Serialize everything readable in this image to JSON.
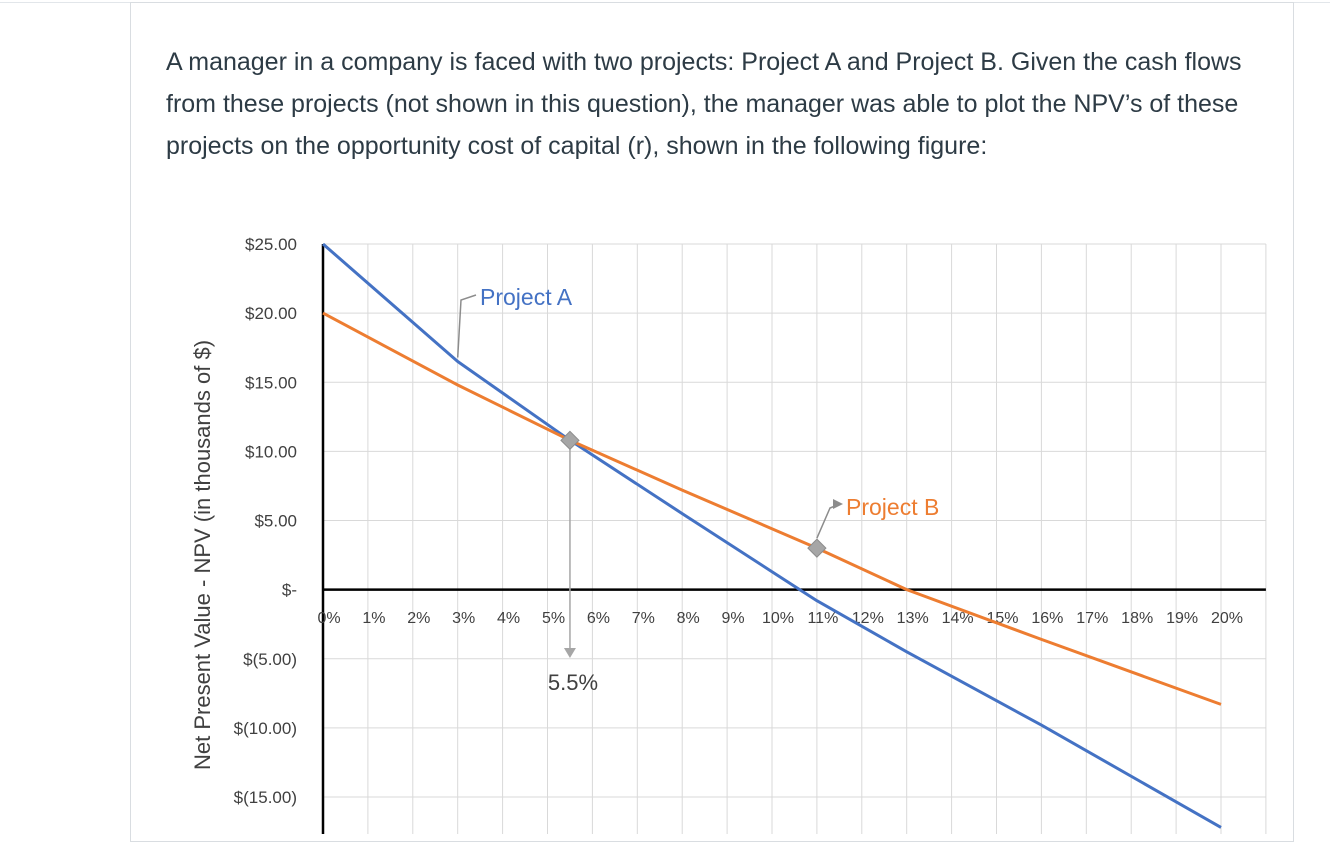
{
  "question": {
    "text": "A manager in a company is faced with two projects: Project A and Project B. Given the cash flows from these projects (not shown in this question), the manager was able to plot the NPV’s of these projects on the opportunity cost of capital (r), shown in the following figure:"
  },
  "chart_data": {
    "type": "line",
    "title": "",
    "xlabel": "",
    "ylabel": "Net Present Value - NPV (in thousands of $)",
    "x_ticks": [
      "0%",
      "1%",
      "2%",
      "3%",
      "4%",
      "5%",
      "6%",
      "7%",
      "8%",
      "9%",
      "10%",
      "11%",
      "12%",
      "13%",
      "14%",
      "15%",
      "16%",
      "17%",
      "18%",
      "19%",
      "20%"
    ],
    "y_ticks": [
      "$25.00",
      "$20.00",
      "$15.00",
      "$10.00",
      "$5.00",
      "$-",
      "$(5.00)",
      "$(10.00)",
      "$(15.00)"
    ],
    "y_tick_values": [
      25,
      20,
      15,
      10,
      5,
      0,
      -5,
      -10,
      -15
    ],
    "xlim": [
      0,
      20
    ],
    "ylim": [
      -15,
      25
    ],
    "grid": true,
    "series": [
      {
        "name": "Project A",
        "color": "#4472c4",
        "points": [
          [
            0,
            25
          ],
          [
            3,
            16.5
          ],
          [
            5.5,
            10.8
          ],
          [
            8,
            5.5
          ],
          [
            10,
            1.3
          ],
          [
            11,
            -0.8
          ],
          [
            13,
            -4.5
          ],
          [
            16,
            -9.8
          ],
          [
            20,
            -17.2
          ]
        ]
      },
      {
        "name": "Project B",
        "color": "#ed7d31",
        "points": [
          [
            0,
            20
          ],
          [
            3,
            14.8
          ],
          [
            5.5,
            10.8
          ],
          [
            8,
            7.2
          ],
          [
            11,
            3.0
          ],
          [
            13,
            0
          ],
          [
            16,
            -3.6
          ],
          [
            20,
            -8.3
          ]
        ]
      }
    ],
    "annotations": {
      "crossover_label": "5.5%",
      "crossover_x": 5.5,
      "crossover_y": 10.8,
      "marker_b_x": 11,
      "marker_b_y": 3.0
    }
  }
}
